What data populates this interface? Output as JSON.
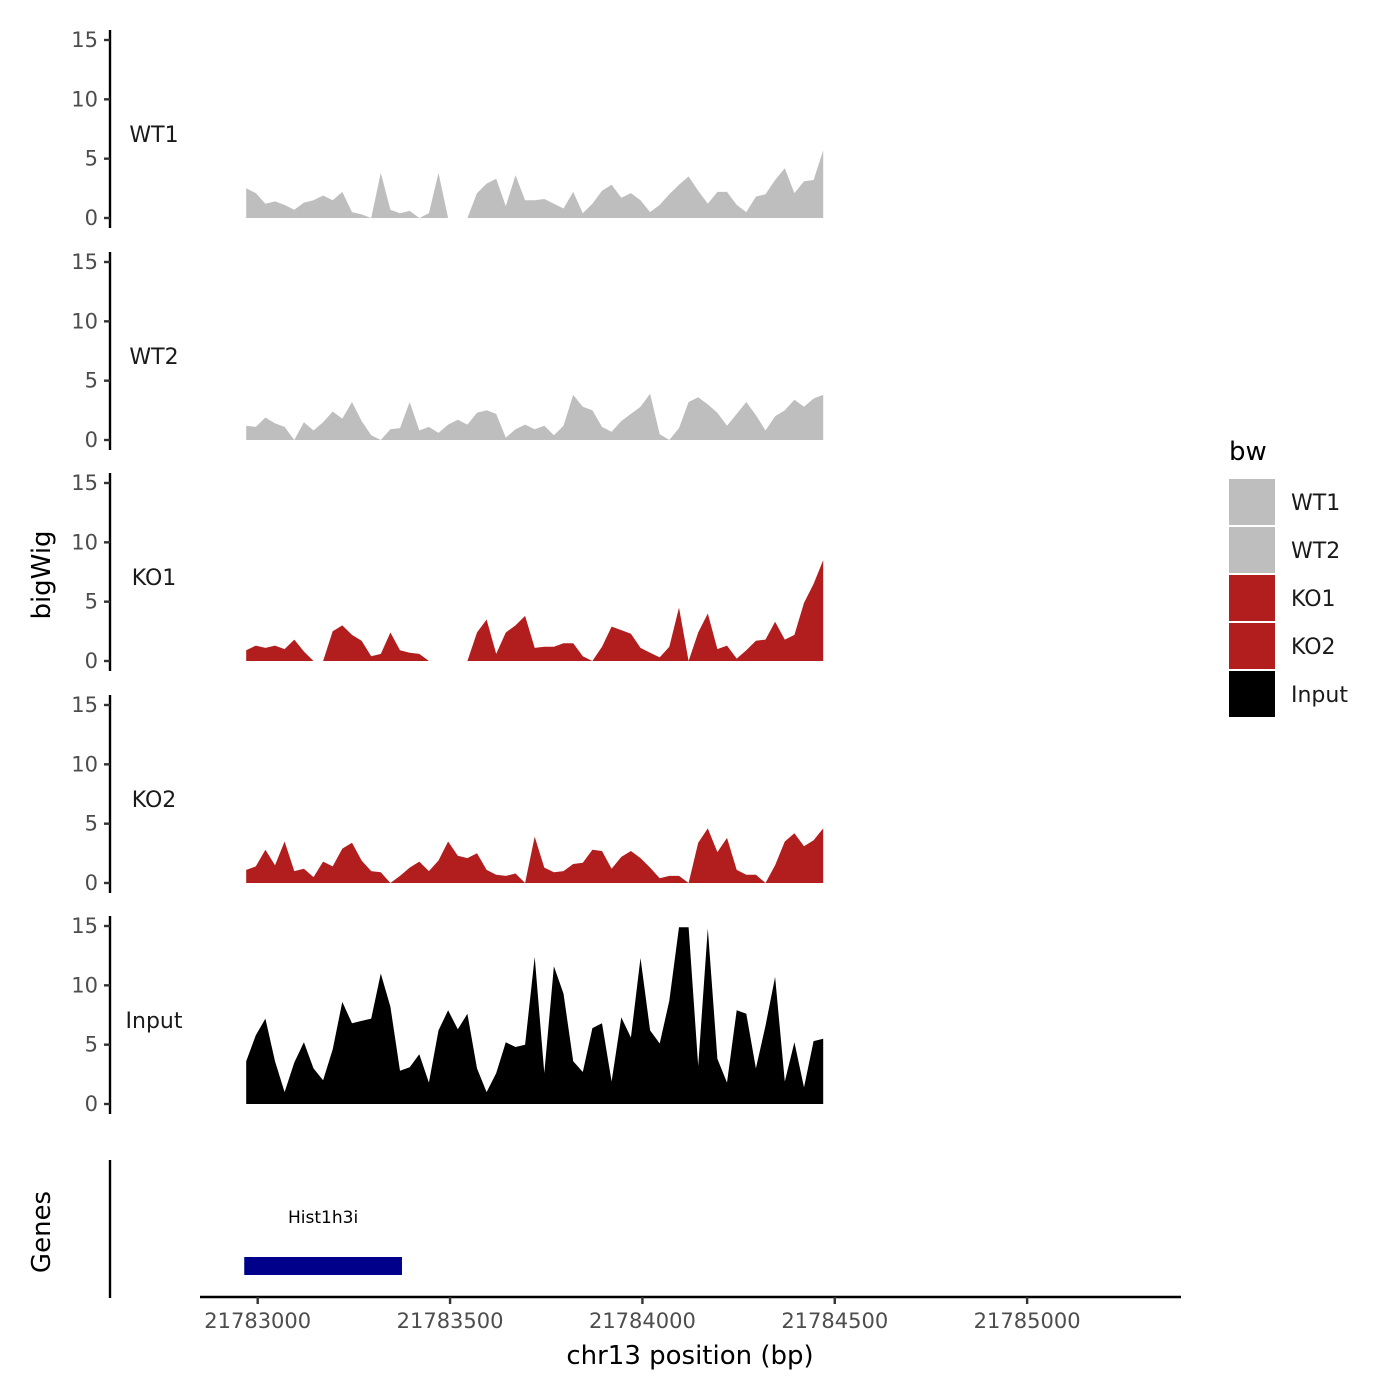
{
  "chart_data": {
    "type": "area",
    "x_axis": {
      "title": "chr13 position (bp)",
      "range": [
        21782850,
        21785400
      ],
      "ticks": [
        21783000,
        21783500,
        21784000,
        21784500,
        21785000
      ],
      "tick_labels": [
        "21783000",
        "21783500",
        "21784000",
        "21784500",
        "21785000"
      ]
    },
    "y_axis": {
      "title": "bigWig",
      "range": [
        0,
        15
      ],
      "ticks": [
        0,
        5,
        10,
        15
      ],
      "tick_labels": [
        "0",
        "5",
        "10",
        "15"
      ]
    },
    "lower_panel_title": "Genes",
    "legend": {
      "title": "bw",
      "position": "right",
      "entries": [
        {
          "label": "WT1",
          "color": "#bebebe"
        },
        {
          "label": "WT2",
          "color": "#bebebe"
        },
        {
          "label": "KO1",
          "color": "#b21e1e"
        },
        {
          "label": "KO2",
          "color": "#b21e1e"
        },
        {
          "label": "Input",
          "color": "#000000"
        }
      ]
    },
    "x_start": 21782970,
    "x_step": 25,
    "series": [
      {
        "name": "WT1",
        "color": "#bebebe",
        "values": [
          2.5,
          2.1,
          1.2,
          1.4,
          1.1,
          0.7,
          1.3,
          1.5,
          1.9,
          1.5,
          2.2,
          0.5,
          0.3,
          0.0,
          3.8,
          0.7,
          0.4,
          0.6,
          0.0,
          0.4,
          3.8,
          0.0,
          0.0,
          0.0,
          2.1,
          2.9,
          3.3,
          1.0,
          3.6,
          1.5,
          1.5,
          1.6,
          1.2,
          0.8,
          2.2,
          0.4,
          1.2,
          2.3,
          2.8,
          1.7,
          2.1,
          1.5,
          0.5,
          1.1,
          2.0,
          2.8,
          3.5,
          2.3,
          1.2,
          2.2,
          2.2,
          1.1,
          0.5,
          1.8,
          2.0,
          3.2,
          4.2,
          2.1,
          3.1,
          3.2,
          5.7
        ]
      },
      {
        "name": "WT2",
        "color": "#bebebe",
        "values": [
          1.2,
          1.1,
          1.9,
          1.4,
          1.1,
          0.0,
          1.5,
          0.8,
          1.5,
          2.4,
          1.8,
          3.2,
          1.6,
          0.4,
          0.0,
          0.9,
          1.0,
          3.2,
          0.8,
          1.1,
          0.6,
          1.3,
          1.7,
          1.3,
          2.3,
          2.5,
          2.2,
          0.2,
          0.9,
          1.3,
          0.9,
          1.2,
          0.4,
          1.2,
          3.8,
          2.8,
          2.5,
          1.1,
          0.7,
          1.6,
          2.2,
          2.8,
          3.9,
          0.5,
          0.0,
          1.0,
          3.2,
          3.6,
          3.0,
          2.3,
          1.2,
          2.2,
          3.2,
          2.1,
          0.8,
          2.0,
          2.5,
          3.4,
          2.8,
          3.5,
          3.8
        ]
      },
      {
        "name": "KO1",
        "color": "#b21e1e",
        "values": [
          0.9,
          1.3,
          1.1,
          1.3,
          1.0,
          1.8,
          0.8,
          0.0,
          0.0,
          2.5,
          3.0,
          2.2,
          1.7,
          0.4,
          0.6,
          2.4,
          0.9,
          0.7,
          0.6,
          0.0,
          0.0,
          0.0,
          0.0,
          0.0,
          2.4,
          3.5,
          0.6,
          2.4,
          3.0,
          3.8,
          1.1,
          1.2,
          1.2,
          1.5,
          1.5,
          0.4,
          0.0,
          1.2,
          2.9,
          2.6,
          2.3,
          1.1,
          0.7,
          0.3,
          1.2,
          4.5,
          0.0,
          2.4,
          4.0,
          1.0,
          1.3,
          0.2,
          0.9,
          1.7,
          1.8,
          3.3,
          1.8,
          2.2,
          4.9,
          6.5,
          8.5
        ]
      },
      {
        "name": "KO2",
        "color": "#b21e1e",
        "values": [
          1.1,
          1.4,
          2.8,
          1.5,
          3.5,
          1.0,
          1.2,
          0.5,
          1.8,
          1.4,
          2.9,
          3.4,
          1.9,
          1.0,
          0.9,
          0.0,
          0.6,
          1.3,
          1.8,
          1.0,
          1.9,
          3.5,
          2.3,
          2.1,
          2.5,
          1.1,
          0.7,
          0.6,
          0.8,
          0.0,
          3.9,
          1.3,
          0.9,
          1.0,
          1.6,
          1.7,
          2.8,
          2.7,
          1.2,
          2.2,
          2.7,
          2.1,
          1.3,
          0.4,
          0.6,
          0.6,
          0.0,
          3.4,
          4.6,
          2.6,
          3.8,
          1.1,
          0.7,
          0.7,
          0.0,
          1.5,
          3.5,
          4.2,
          3.1,
          3.6,
          4.6
        ]
      },
      {
        "name": "Input",
        "color": "#000000",
        "values": [
          3.6,
          5.8,
          7.2,
          3.6,
          1.0,
          3.5,
          5.2,
          3.0,
          2.0,
          4.6,
          8.6,
          6.8,
          7.0,
          7.2,
          11.0,
          8.2,
          2.8,
          3.1,
          4.2,
          1.8,
          6.2,
          7.9,
          6.3,
          7.6,
          3.0,
          1.0,
          2.6,
          5.2,
          4.8,
          5.0,
          12.4,
          2.6,
          11.6,
          9.3,
          3.6,
          2.7,
          6.4,
          6.8,
          1.9,
          7.3,
          5.6,
          12.3,
          6.2,
          5.1,
          8.7,
          14.9,
          14.9,
          3.2,
          14.8,
          3.8,
          1.8,
          7.9,
          7.6,
          3.0,
          6.6,
          10.7,
          1.9,
          5.2,
          1.4,
          5.3,
          5.5
        ]
      }
    ],
    "genes": [
      {
        "name": "Hist1h3i",
        "start": 21782965,
        "end": 21783375,
        "color": "#00008b"
      }
    ]
  }
}
